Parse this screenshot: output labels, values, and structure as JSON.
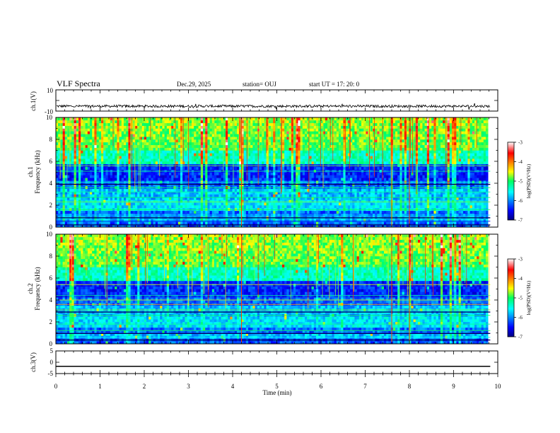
{
  "header": {
    "title": "VLF Spectra",
    "date": "Dec.29, 2025",
    "station": "station= OUJ",
    "start": "start  UT  =   17: 20: 0"
  },
  "chart_data": [
    {
      "type": "line",
      "panel": "ch1-waveform",
      "ylabel": "ch.1(V)",
      "ylim": [
        -10,
        10
      ],
      "yticks": [
        "10",
        "-10"
      ],
      "x": [
        0,
        9.83
      ],
      "y_mean": -5.4,
      "y_noise_amplitude": 1.2,
      "color": "#000000"
    },
    {
      "type": "heatmap",
      "panel": "ch1-spectrogram",
      "ylabel": "ch.1\nFrequency (kHz)",
      "ylim": [
        0,
        10
      ],
      "yticks": [
        "0",
        "2",
        "4",
        "6",
        "8",
        "10"
      ],
      "xlim": [
        0,
        9.83
      ],
      "colorbar": {
        "label": "log(PSD)(V²/Hz)",
        "min": -7,
        "max": -3,
        "ticks": [
          "-3",
          "-4",
          "-5",
          "-6",
          "-7"
        ]
      }
    },
    {
      "type": "heatmap",
      "panel": "ch2-spectrogram",
      "ylabel": "ch.2\nFrequency (kHz)",
      "ylim": [
        0,
        10
      ],
      "yticks": [
        "0",
        "2",
        "4",
        "6",
        "8",
        "10"
      ],
      "xlim": [
        0,
        9.83
      ],
      "colorbar": {
        "label": "log(PSD)(V²/Hz)",
        "min": -7,
        "max": -3,
        "ticks": [
          "-3",
          "-4",
          "-5",
          "-6",
          "-7"
        ]
      }
    },
    {
      "type": "line",
      "panel": "ch3-waveform",
      "ylabel": "ch.3(V)",
      "ylim": [
        -5,
        5
      ],
      "yticks": [
        "5",
        "0",
        "-5"
      ],
      "x": [
        0,
        9.83
      ],
      "y": [
        -1.8,
        -1.8
      ],
      "color": "#000000"
    }
  ],
  "xaxis": {
    "label": "Time (min)",
    "xlim": [
      0,
      10
    ],
    "ticks": [
      "0",
      "1",
      "2",
      "3",
      "4",
      "5",
      "6",
      "7",
      "8",
      "9",
      "10"
    ]
  },
  "colors": {
    "background": "#ffffff",
    "axis": "#000000"
  }
}
